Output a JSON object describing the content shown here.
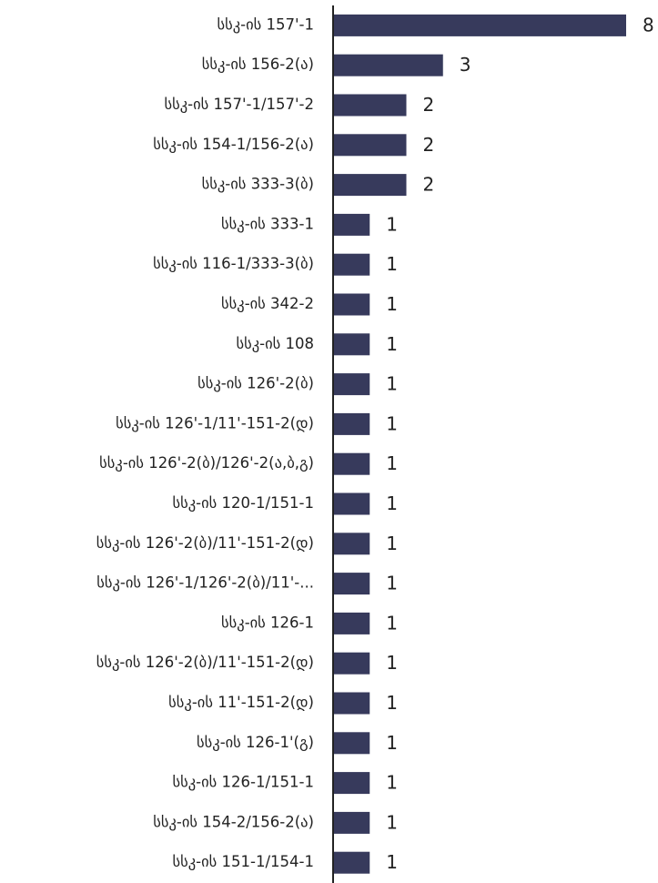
{
  "chart_data": {
    "type": "bar",
    "orientation": "horizontal",
    "color": "#373a5c",
    "categories": [
      "სსკ-ის 157'-1",
      "სსკ-ის 156-2(ა)",
      "სსკ-ის 157'-1/157'-2",
      "სსკ-ის 154-1/156-2(ა)",
      "სსკ-ის 333-3(ბ)",
      "სსკ-ის 333-1",
      "სსკ-ის 116-1/333-3(ბ)",
      "სსკ-ის 342-2",
      "სსკ-ის 108",
      "სსკ-ის 126'-2(ბ)",
      "სსკ-ის 126'-1/11'-151-2(დ)",
      "სსკ-ის 126'-2(ბ)/126'-2(ა,ბ,გ)",
      "სსკ-ის 120-1/151-1",
      "სსკ-ის 126'-2(ბ)/11'-151-2(დ)",
      "სსკ-ის 126'-1/126'-2(ბ)/11'-...",
      "სსკ-ის 126-1",
      "სსკ-ის 126'-2(ბ)/11'-151-2(დ)",
      "სსკ-ის 11'-151-2(დ)",
      "სსკ-ის 126-1'(გ)",
      "სსკ-ის 126-1/151-1",
      "სსკ-ის 154-2/156-2(ა)",
      "სსკ-ის 151-1/154-1"
    ],
    "values": [
      8,
      3,
      2,
      2,
      2,
      1,
      1,
      1,
      1,
      1,
      1,
      1,
      1,
      1,
      1,
      1,
      1,
      1,
      1,
      1,
      1,
      1
    ]
  }
}
